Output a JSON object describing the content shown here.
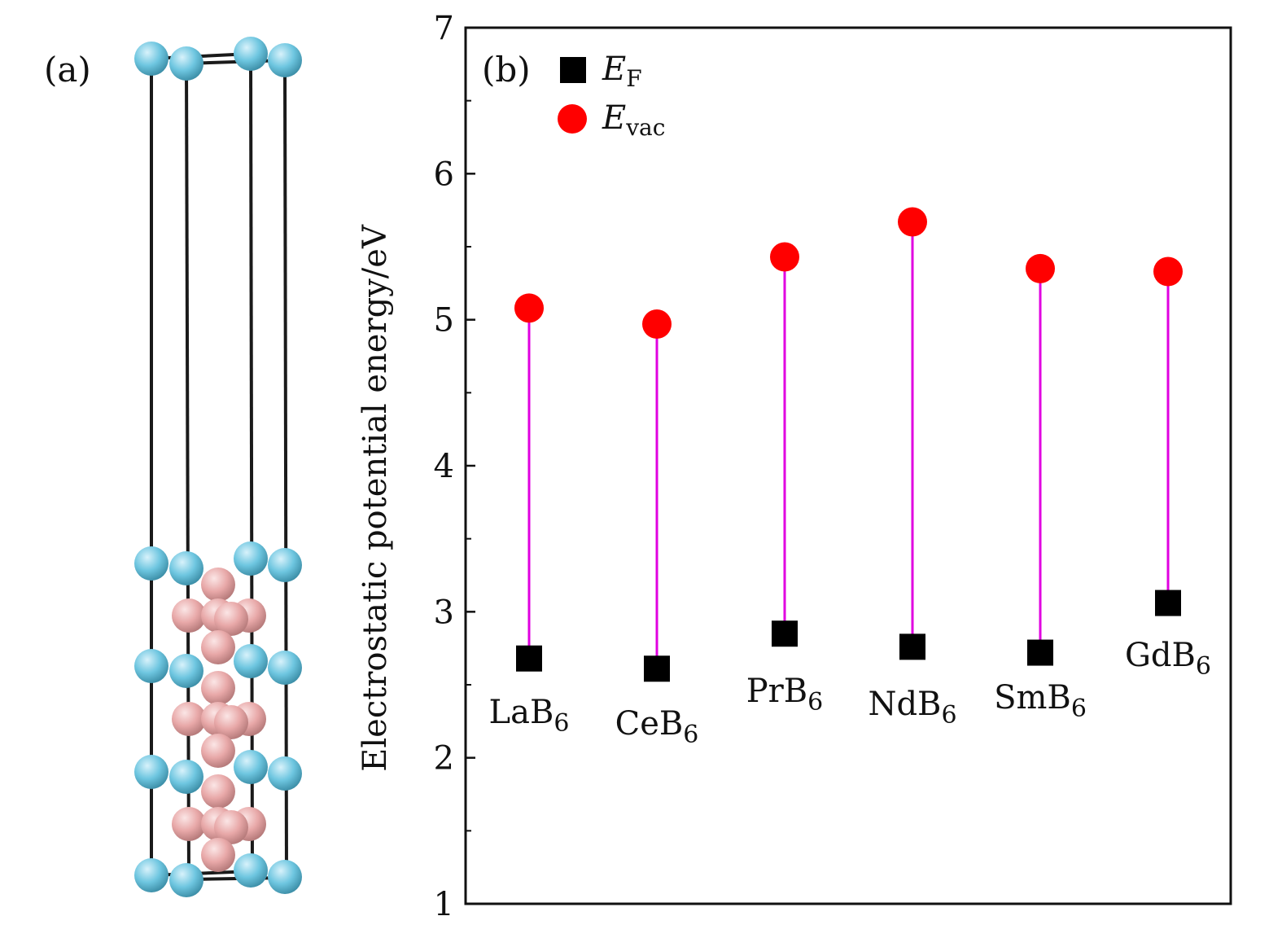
{
  "panel_a": {
    "label": "(a)"
  },
  "colors": {
    "vac_point": "#ff0000",
    "fermi_point": "#000000",
    "connector": "#e000e0",
    "metal_atom": "#6ec6e0",
    "boron_atom": "#e8a8a8",
    "frame": "#1a1a1a"
  },
  "chart_data": {
    "type": "scatter",
    "panel_label": "(b)",
    "ylabel": "Electrostatic potential energy/eV",
    "ylim": [
      1,
      7
    ],
    "yticks": [
      "1",
      "2",
      "3",
      "4",
      "5",
      "6",
      "7"
    ],
    "categories": [
      {
        "base": "LaB",
        "sub": "6"
      },
      {
        "base": "CeB",
        "sub": "6"
      },
      {
        "base": "PrB",
        "sub": "6"
      },
      {
        "base": "NdB",
        "sub": "6"
      },
      {
        "base": "SmB",
        "sub": "6"
      },
      {
        "base": "GdB",
        "sub": "6"
      }
    ],
    "series": [
      {
        "name": {
          "base": "E",
          "sub": "F"
        },
        "marker": "square",
        "values": [
          2.68,
          2.61,
          2.85,
          2.76,
          2.72,
          3.06
        ]
      },
      {
        "name": {
          "base": "E",
          "sub": "vac"
        },
        "marker": "circle",
        "values": [
          5.08,
          4.97,
          5.43,
          5.67,
          5.35,
          5.33
        ]
      }
    ],
    "legend_position": "top-left",
    "grid": false
  }
}
